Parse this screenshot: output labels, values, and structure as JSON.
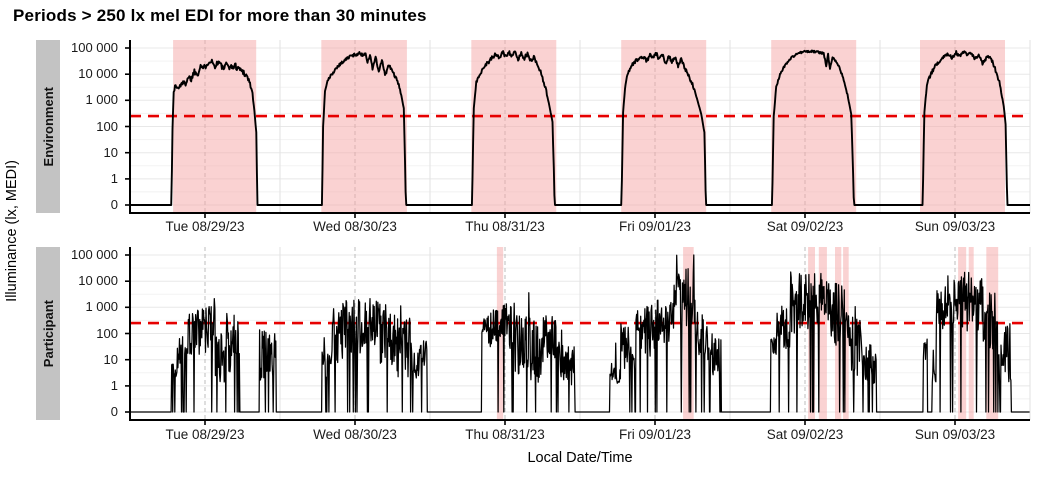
{
  "title": "Periods > 250 lx mel EDI for more than 30 minutes",
  "x_axis_title": "Local Date/Time",
  "y_axis_title": "Illuminance (lx, MEDI)",
  "chart_data": {
    "type": "line",
    "title": "Periods > 250 lx mel EDI for more than 30 minutes",
    "xlabel": "Local Date/Time",
    "ylabel": "Illuminance (lx, MEDI)",
    "x_tick_labels": [
      "Tue 08/29/23",
      "Wed 08/30/23",
      "Thu 08/31/23",
      "Fri 09/01/23",
      "Sat 09/02/23",
      "Sun 09/03/23"
    ],
    "y_tick_labels": [
      "100 000",
      "10 000",
      "1 000",
      "100",
      "10",
      "1",
      "0"
    ],
    "y_tick_values": [
      100000,
      10000,
      1000,
      100,
      10,
      1,
      0
    ],
    "x_range_days": 6,
    "grid": true,
    "legend": "none",
    "threshold": {
      "value_lx": 250,
      "color": "#e60000",
      "style": "dashed"
    },
    "colors": {
      "highlight": "rgba(245,168,168,0.52)",
      "series_line": "#000000",
      "strip_bg": "#c3c3c3",
      "grid_major": "#e8e8e8",
      "grid_minor": "#f3f3f3",
      "grid_midnight": "#e2e2e2",
      "grid_noon_dashed": "#bdbdbd",
      "axis": "#000000"
    },
    "panels": [
      {
        "label": "Environment",
        "highlight_windows_hours": [
          [
            6.9,
            20.2
          ],
          [
            30.6,
            44.3
          ],
          [
            54.6,
            68.2
          ],
          [
            78.6,
            92.2
          ],
          [
            102.6,
            116.2
          ],
          [
            126.4,
            140.0
          ]
        ],
        "roughness_decades_by_day": [
          0.12,
          0.06,
          0.08,
          0.07,
          0.04,
          0.07
        ],
        "daily_control_points_hour_lux": [
          [
            [
              0,
              0
            ],
            [
              6.6,
              0
            ],
            [
              6.8,
              80
            ],
            [
              7.0,
              2500
            ],
            [
              7.3,
              3500
            ],
            [
              7.8,
              2800
            ],
            [
              8.3,
              5000
            ],
            [
              8.8,
              4000
            ],
            [
              9.3,
              8000
            ],
            [
              9.8,
              6500
            ],
            [
              10.3,
              13000
            ],
            [
              10.8,
              10000
            ],
            [
              11.3,
              22000
            ],
            [
              11.8,
              16000
            ],
            [
              12.3,
              26000
            ],
            [
              13.0,
              35000
            ],
            [
              13.5,
              20000
            ],
            [
              14.2,
              30000
            ],
            [
              14.9,
              16000
            ],
            [
              15.5,
              23000
            ],
            [
              16.2,
              18000
            ],
            [
              16.8,
              21000
            ],
            [
              17.5,
              16000
            ],
            [
              18.2,
              12000
            ],
            [
              18.9,
              7000
            ],
            [
              19.5,
              2500
            ],
            [
              19.9,
              400
            ],
            [
              20.2,
              60
            ],
            [
              20.4,
              0
            ],
            [
              24,
              0
            ]
          ],
          [
            [
              0,
              0
            ],
            [
              6.7,
              0
            ],
            [
              6.9,
              100
            ],
            [
              7.2,
              2500
            ],
            [
              7.7,
              6000
            ],
            [
              8.3,
              10000
            ],
            [
              9.2,
              20000
            ],
            [
              10.2,
              32000
            ],
            [
              11.2,
              48000
            ],
            [
              12.2,
              58000
            ],
            [
              12.8,
              62000
            ],
            [
              13.3,
              52000
            ],
            [
              13.7,
              66000
            ],
            [
              14.0,
              26000
            ],
            [
              14.4,
              56000
            ],
            [
              14.8,
              16000
            ],
            [
              15.3,
              46000
            ],
            [
              15.8,
              11000
            ],
            [
              16.3,
              36000
            ],
            [
              16.8,
              9000
            ],
            [
              17.4,
              22000
            ],
            [
              18.0,
              13000
            ],
            [
              18.6,
              6500
            ],
            [
              19.2,
              2800
            ],
            [
              19.8,
              500
            ],
            [
              20.2,
              0
            ],
            [
              24,
              0
            ]
          ],
          [
            [
              0,
              0
            ],
            [
              6.7,
              0
            ],
            [
              7.0,
              500
            ],
            [
              7.4,
              4500
            ],
            [
              8.0,
              11000
            ],
            [
              8.8,
              22000
            ],
            [
              9.8,
              38000
            ],
            [
              10.5,
              58000
            ],
            [
              11.1,
              42000
            ],
            [
              11.6,
              68000
            ],
            [
              12.1,
              48000
            ],
            [
              12.6,
              72000
            ],
            [
              13.1,
              52000
            ],
            [
              13.6,
              67000
            ],
            [
              14.1,
              37000
            ],
            [
              14.6,
              62000
            ],
            [
              15.1,
              42000
            ],
            [
              15.6,
              57000
            ],
            [
              16.1,
              32000
            ],
            [
              16.6,
              47000
            ],
            [
              17.2,
              22000
            ],
            [
              17.8,
              11000
            ],
            [
              18.4,
              3500
            ],
            [
              19.0,
              800
            ],
            [
              19.6,
              150
            ],
            [
              20.0,
              0
            ],
            [
              24,
              0
            ]
          ],
          [
            [
              0,
              0
            ],
            [
              6.6,
              0
            ],
            [
              6.9,
              350
            ],
            [
              7.2,
              2800
            ],
            [
              7.5,
              9000
            ],
            [
              8.0,
              16000
            ],
            [
              8.5,
              26000
            ],
            [
              9.2,
              36000
            ],
            [
              10.2,
              46000
            ],
            [
              10.7,
              31000
            ],
            [
              11.2,
              56000
            ],
            [
              11.7,
              41000
            ],
            [
              12.2,
              61000
            ],
            [
              12.7,
              36000
            ],
            [
              13.2,
              56000
            ],
            [
              13.7,
              26000
            ],
            [
              14.2,
              51000
            ],
            [
              14.7,
              31000
            ],
            [
              15.2,
              46000
            ],
            [
              15.7,
              21000
            ],
            [
              16.2,
              36000
            ],
            [
              16.8,
              16000
            ],
            [
              17.4,
              9000
            ],
            [
              18.0,
              4000
            ],
            [
              18.7,
              1200
            ],
            [
              19.4,
              300
            ],
            [
              19.9,
              60
            ],
            [
              20.2,
              0
            ],
            [
              24,
              0
            ]
          ],
          [
            [
              0,
              0
            ],
            [
              6.7,
              0
            ],
            [
              7.0,
              250
            ],
            [
              7.4,
              3200
            ],
            [
              8.0,
              10000
            ],
            [
              8.8,
              22000
            ],
            [
              9.8,
              42000
            ],
            [
              10.8,
              62000
            ],
            [
              11.8,
              72000
            ],
            [
              13.2,
              74000
            ],
            [
              14.2,
              69000
            ],
            [
              15.0,
              61000
            ],
            [
              15.4,
              21000
            ],
            [
              15.7,
              56000
            ],
            [
              16.0,
              16000
            ],
            [
              16.4,
              46000
            ],
            [
              17.0,
              31000
            ],
            [
              17.6,
              16000
            ],
            [
              18.2,
              6000
            ],
            [
              18.8,
              1600
            ],
            [
              19.4,
              300
            ],
            [
              19.9,
              0
            ],
            [
              24,
              0
            ]
          ],
          [
            [
              0,
              0
            ],
            [
              6.8,
              0
            ],
            [
              7.1,
              350
            ],
            [
              7.5,
              4000
            ],
            [
              8.2,
              11000
            ],
            [
              9.2,
              27000
            ],
            [
              10.2,
              47000
            ],
            [
              11.0,
              62000
            ],
            [
              11.6,
              42000
            ],
            [
              12.2,
              67000
            ],
            [
              12.8,
              47000
            ],
            [
              13.4,
              72000
            ],
            [
              14.0,
              52000
            ],
            [
              14.6,
              62000
            ],
            [
              15.2,
              37000
            ],
            [
              15.8,
              52000
            ],
            [
              16.4,
              27000
            ],
            [
              17.0,
              42000
            ],
            [
              17.6,
              50000
            ],
            [
              18.3,
              20000
            ],
            [
              19.2,
              4000
            ],
            [
              19.8,
              600
            ],
            [
              20.1,
              120
            ],
            [
              20.4,
              0
            ],
            [
              24,
              0
            ]
          ]
        ]
      },
      {
        "label": "Participant",
        "highlight_windows_hours": [
          [
            58.7,
            59.7
          ],
          [
            88.5,
            90.2
          ],
          [
            108.5,
            109.6
          ],
          [
            110.2,
            111.5
          ],
          [
            112.8,
            113.8
          ],
          [
            114.1,
            115.0
          ],
          [
            132.5,
            133.8
          ],
          [
            134.2,
            135.0
          ],
          [
            137.0,
            138.9
          ]
        ],
        "dropout_prob": 0.07,
        "spike_prob": 0.035,
        "spike_boost_decades": 0.9,
        "activity_segments_by_day_hour_medianlog_jitterlog": [
          [
            [
              6.6,
              7.6,
              0.6,
              0.3
            ],
            [
              7.6,
              9.3,
              1.3,
              0.7
            ],
            [
              9.3,
              12.3,
              2.0,
              1.0
            ],
            [
              12.3,
              13.6,
              2.3,
              1.1
            ],
            [
              13.6,
              16.2,
              1.3,
              1.2
            ],
            [
              16.2,
              17.5,
              1.9,
              0.8
            ],
            [
              20.6,
              23.4,
              1.2,
              1.0
            ]
          ],
          [
            [
              6.7,
              8.2,
              0.8,
              0.5
            ],
            [
              8.2,
              10.0,
              1.8,
              1.0
            ],
            [
              10.0,
              13.0,
              2.3,
              1.1
            ],
            [
              13.0,
              16.0,
              2.4,
              1.0
            ],
            [
              16.0,
              18.5,
              2.0,
              1.2
            ],
            [
              18.5,
              21.0,
              1.5,
              1.2
            ],
            [
              21.0,
              23.5,
              1.0,
              0.8
            ]
          ],
          [
            [
              8.3,
              9.3,
              2.3,
              0.3
            ],
            [
              9.3,
              11.3,
              2.2,
              0.8
            ],
            [
              11.3,
              13.5,
              2.3,
              0.9
            ],
            [
              13.5,
              16.0,
              1.6,
              1.2
            ],
            [
              16.0,
              18.0,
              1.3,
              1.2
            ],
            [
              18.0,
              20.3,
              1.8,
              0.9
            ],
            [
              20.3,
              23.2,
              0.8,
              0.9
            ]
          ],
          [
            [
              4.8,
              6.5,
              0.5,
              0.4
            ],
            [
              6.5,
              9.0,
              1.6,
              1.0
            ],
            [
              9.0,
              12.0,
              2.1,
              1.0
            ],
            [
              12.0,
              15.0,
              2.3,
              1.0
            ],
            [
              15.0,
              16.4,
              3.0,
              1.3
            ],
            [
              16.4,
              18.4,
              3.5,
              1.2
            ],
            [
              18.4,
              20.5,
              2.0,
              1.0
            ],
            [
              20.5,
              22.6,
              1.2,
              1.0
            ]
          ],
          [
            [
              6.4,
              7.4,
              1.5,
              0.4
            ],
            [
              7.4,
              9.6,
              2.2,
              0.8
            ],
            [
              9.6,
              12.6,
              3.2,
              1.2
            ],
            [
              12.6,
              16.0,
              3.3,
              1.2
            ],
            [
              16.0,
              19.0,
              2.8,
              1.3
            ],
            [
              19.0,
              21.0,
              1.5,
              1.2
            ],
            [
              21.0,
              23.5,
              0.9,
              0.8
            ]
          ],
          [
            [
              6.9,
              7.6,
              1.3,
              0.6
            ],
            [
              8.3,
              9.0,
              0.8,
              0.7
            ],
            [
              9.0,
              10.5,
              2.8,
              1.0
            ],
            [
              10.5,
              13.0,
              3.3,
              1.0
            ],
            [
              13.0,
              16.5,
              3.2,
              1.2
            ],
            [
              16.5,
              18.8,
              2.5,
              1.2
            ],
            [
              18.8,
              20.5,
              1.3,
              1.0
            ],
            [
              20.5,
              21.1,
              0.8,
              0.7
            ]
          ]
        ]
      }
    ],
    "noise_seed": 1337,
    "sample_step_hours_environment": 0.1,
    "sample_step_hours_participant": 0.0833
  }
}
